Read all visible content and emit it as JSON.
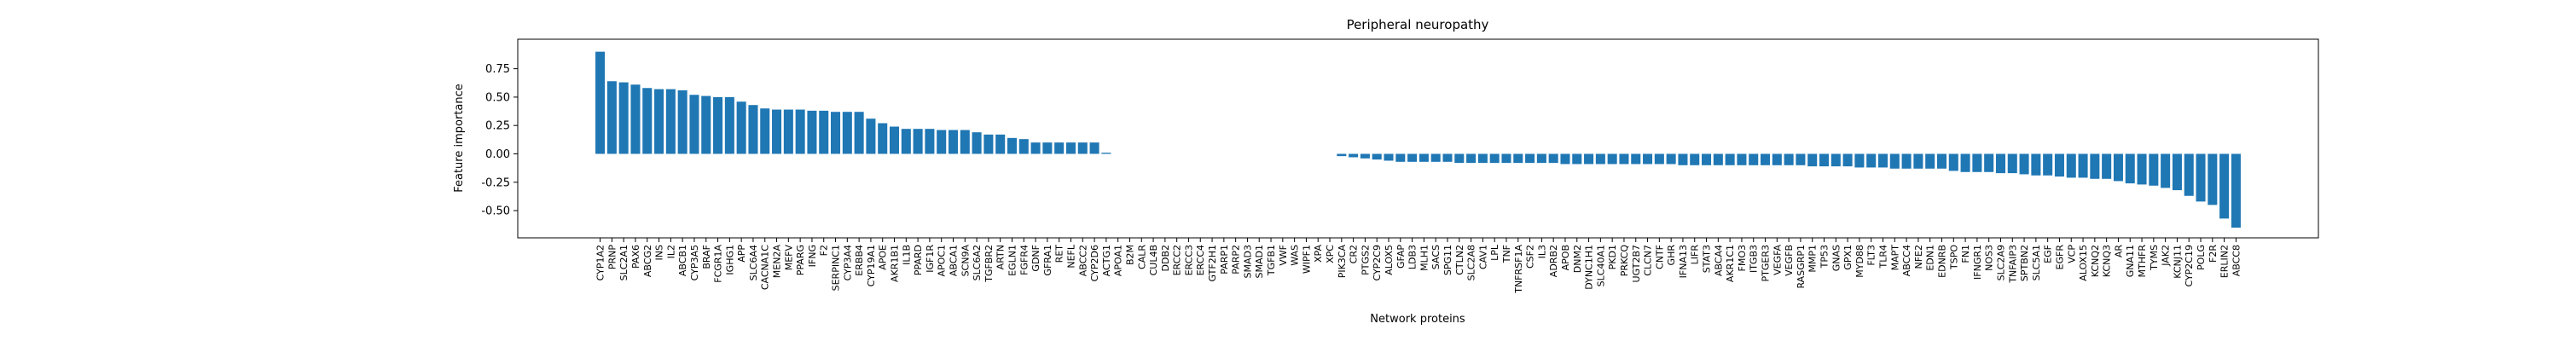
{
  "chart_data": {
    "type": "bar",
    "title": "Peripheral neuropathy",
    "xlabel": "Network proteins",
    "ylabel": "Feature importance",
    "color": "#1f77b4",
    "categories": [
      "CYP1A2",
      "PRNP",
      "SLC2A1",
      "PAX6",
      "ABCG2",
      "INS",
      "IL2",
      "ABCB1",
      "CYP3A5",
      "BRAF",
      "FCGR1A",
      "IGHG1",
      "APP",
      "SLC6A4",
      "CACNA1C",
      "MEN2A",
      "MEFV",
      "PPARG",
      "IFNG",
      "F2",
      "SERPINC1",
      "CYP3A4",
      "ERBB4",
      "CYP19A1",
      "APOE",
      "AKR1B1",
      "IL1B",
      "PPARD",
      "IGF1R",
      "APOC1",
      "ABCA1",
      "SCN9A",
      "SLC6A2",
      "TGFBR2",
      "ARTN",
      "EGLN1",
      "FGFR4",
      "GDNF",
      "GFRA1",
      "RET",
      "NEFL",
      "ABCC2",
      "CYP2D6",
      "ACTG1",
      "APOA1",
      "B2M",
      "CALR",
      "CUL4B",
      "DDB2",
      "ERCC2",
      "ERCC3",
      "ERCC4",
      "GTF2H1",
      "PARP1",
      "PARP2",
      "SMAD3",
      "SMAD1",
      "TGFB1",
      "VWF",
      "WAS",
      "WIPF1",
      "XPA",
      "XPC",
      "PIK3CA",
      "CR2",
      "PTGS2",
      "CYP2C9",
      "ALOX5",
      "GFAP",
      "LDB3",
      "MLH1",
      "SACS",
      "SPG11",
      "CTLN2",
      "SLC2A8",
      "CAV1",
      "LPL",
      "TNF",
      "TNFRSF1A",
      "CSF2",
      "IL3",
      "ADRB2",
      "APOB",
      "DNM2",
      "DYNC1H1",
      "SLC40A1",
      "PKD1",
      "PRKCQ",
      "UGT2B7",
      "CLCN7",
      "CNTF",
      "GHR",
      "IFNA13",
      "LIFR",
      "STAT3",
      "ABCA4",
      "AKR1C1",
      "FMO3",
      "ITGB3",
      "PTGER3",
      "VEGFA",
      "VEGFB",
      "RASGRP1",
      "MMP1",
      "TP53",
      "GNAS",
      "GPX1",
      "MYD88",
      "FLT3",
      "TLR4",
      "MAPT",
      "ABCC4",
      "NFE2",
      "EDN1",
      "EDNRB",
      "TSPO",
      "FN1",
      "IFNGR1",
      "NOS3",
      "SLC2A9",
      "TNFAIP3",
      "SPTBN2",
      "SLC5A1",
      "EGF",
      "EGFR",
      "VCP",
      "ALOX15",
      "KCNQ2",
      "KCNQ3",
      "AR",
      "GNA11",
      "MTHFR",
      "TYMS",
      "JAK2",
      "KCNJ11",
      "CYP2C19",
      "POLG",
      "F2R",
      "ERLIN2",
      "ABCC8"
    ],
    "values": [
      0.9,
      0.64,
      0.63,
      0.61,
      0.58,
      0.57,
      0.57,
      0.56,
      0.52,
      0.51,
      0.5,
      0.5,
      0.46,
      0.43,
      0.4,
      0.39,
      0.39,
      0.39,
      0.38,
      0.38,
      0.37,
      0.37,
      0.37,
      0.31,
      0.27,
      0.24,
      0.22,
      0.22,
      0.22,
      0.21,
      0.21,
      0.21,
      0.19,
      0.17,
      0.17,
      0.14,
      0.13,
      0.1,
      0.1,
      0.1,
      0.1,
      0.1,
      0.1,
      0.01,
      0,
      0,
      0,
      0,
      0,
      0,
      0,
      0,
      0,
      0,
      0,
      0,
      0,
      0,
      0,
      0,
      0,
      0,
      0,
      -0.02,
      -0.03,
      -0.04,
      -0.05,
      -0.06,
      -0.07,
      -0.07,
      -0.07,
      -0.07,
      -0.07,
      -0.08,
      -0.08,
      -0.08,
      -0.08,
      -0.08,
      -0.08,
      -0.08,
      -0.08,
      -0.08,
      -0.09,
      -0.09,
      -0.09,
      -0.09,
      -0.09,
      -0.09,
      -0.09,
      -0.09,
      -0.09,
      -0.09,
      -0.1,
      -0.1,
      -0.1,
      -0.1,
      -0.1,
      -0.1,
      -0.1,
      -0.1,
      -0.1,
      -0.1,
      -0.1,
      -0.11,
      -0.11,
      -0.11,
      -0.11,
      -0.12,
      -0.12,
      -0.12,
      -0.13,
      -0.13,
      -0.13,
      -0.13,
      -0.13,
      -0.15,
      -0.16,
      -0.16,
      -0.16,
      -0.17,
      -0.17,
      -0.18,
      -0.19,
      -0.19,
      -0.2,
      -0.21,
      -0.21,
      -0.22,
      -0.22,
      -0.24,
      -0.26,
      -0.27,
      -0.28,
      -0.3,
      -0.32,
      -0.37,
      -0.42,
      -0.45,
      -0.57,
      -0.65
    ],
    "ylim": [
      -0.74,
      1.01
    ],
    "yticks": [
      {
        "value": -0.5,
        "label": "-0.50"
      },
      {
        "value": -0.25,
        "label": "-0.25"
      },
      {
        "value": 0,
        "label": "0.00"
      },
      {
        "value": 0.25,
        "label": "0.25"
      },
      {
        "value": 0.5,
        "label": "0.50"
      },
      {
        "value": 0.75,
        "label": "0.75"
      }
    ],
    "grid": false
  }
}
